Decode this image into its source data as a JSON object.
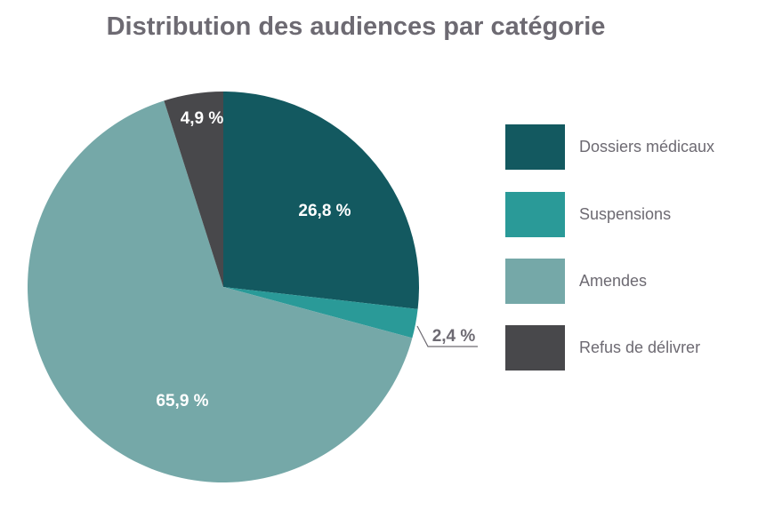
{
  "chart_data": {
    "type": "pie",
    "title": "Distribution des audiences par catégorie",
    "start_angle": "12 o'clock",
    "direction": "clockwise",
    "slices": [
      {
        "label": "Dossiers médicaux",
        "value": 26.8,
        "display": "26,8 %",
        "color": "#135960",
        "label_color": "#ffffff"
      },
      {
        "label": "Suspensions",
        "value": 2.4,
        "display": "2,4 %",
        "color": "#2a9a98",
        "label_color": "#6d6a72"
      },
      {
        "label": "Amendes",
        "value": 65.9,
        "display": "65,9 %",
        "color": "#75a8a8",
        "label_color": "#ffffff"
      },
      {
        "label": "Refus de délivrer",
        "value": 4.9,
        "display": "4,9 %",
        "color": "#48484b",
        "label_color": "#ffffff"
      }
    ],
    "legend_placement": "right"
  }
}
